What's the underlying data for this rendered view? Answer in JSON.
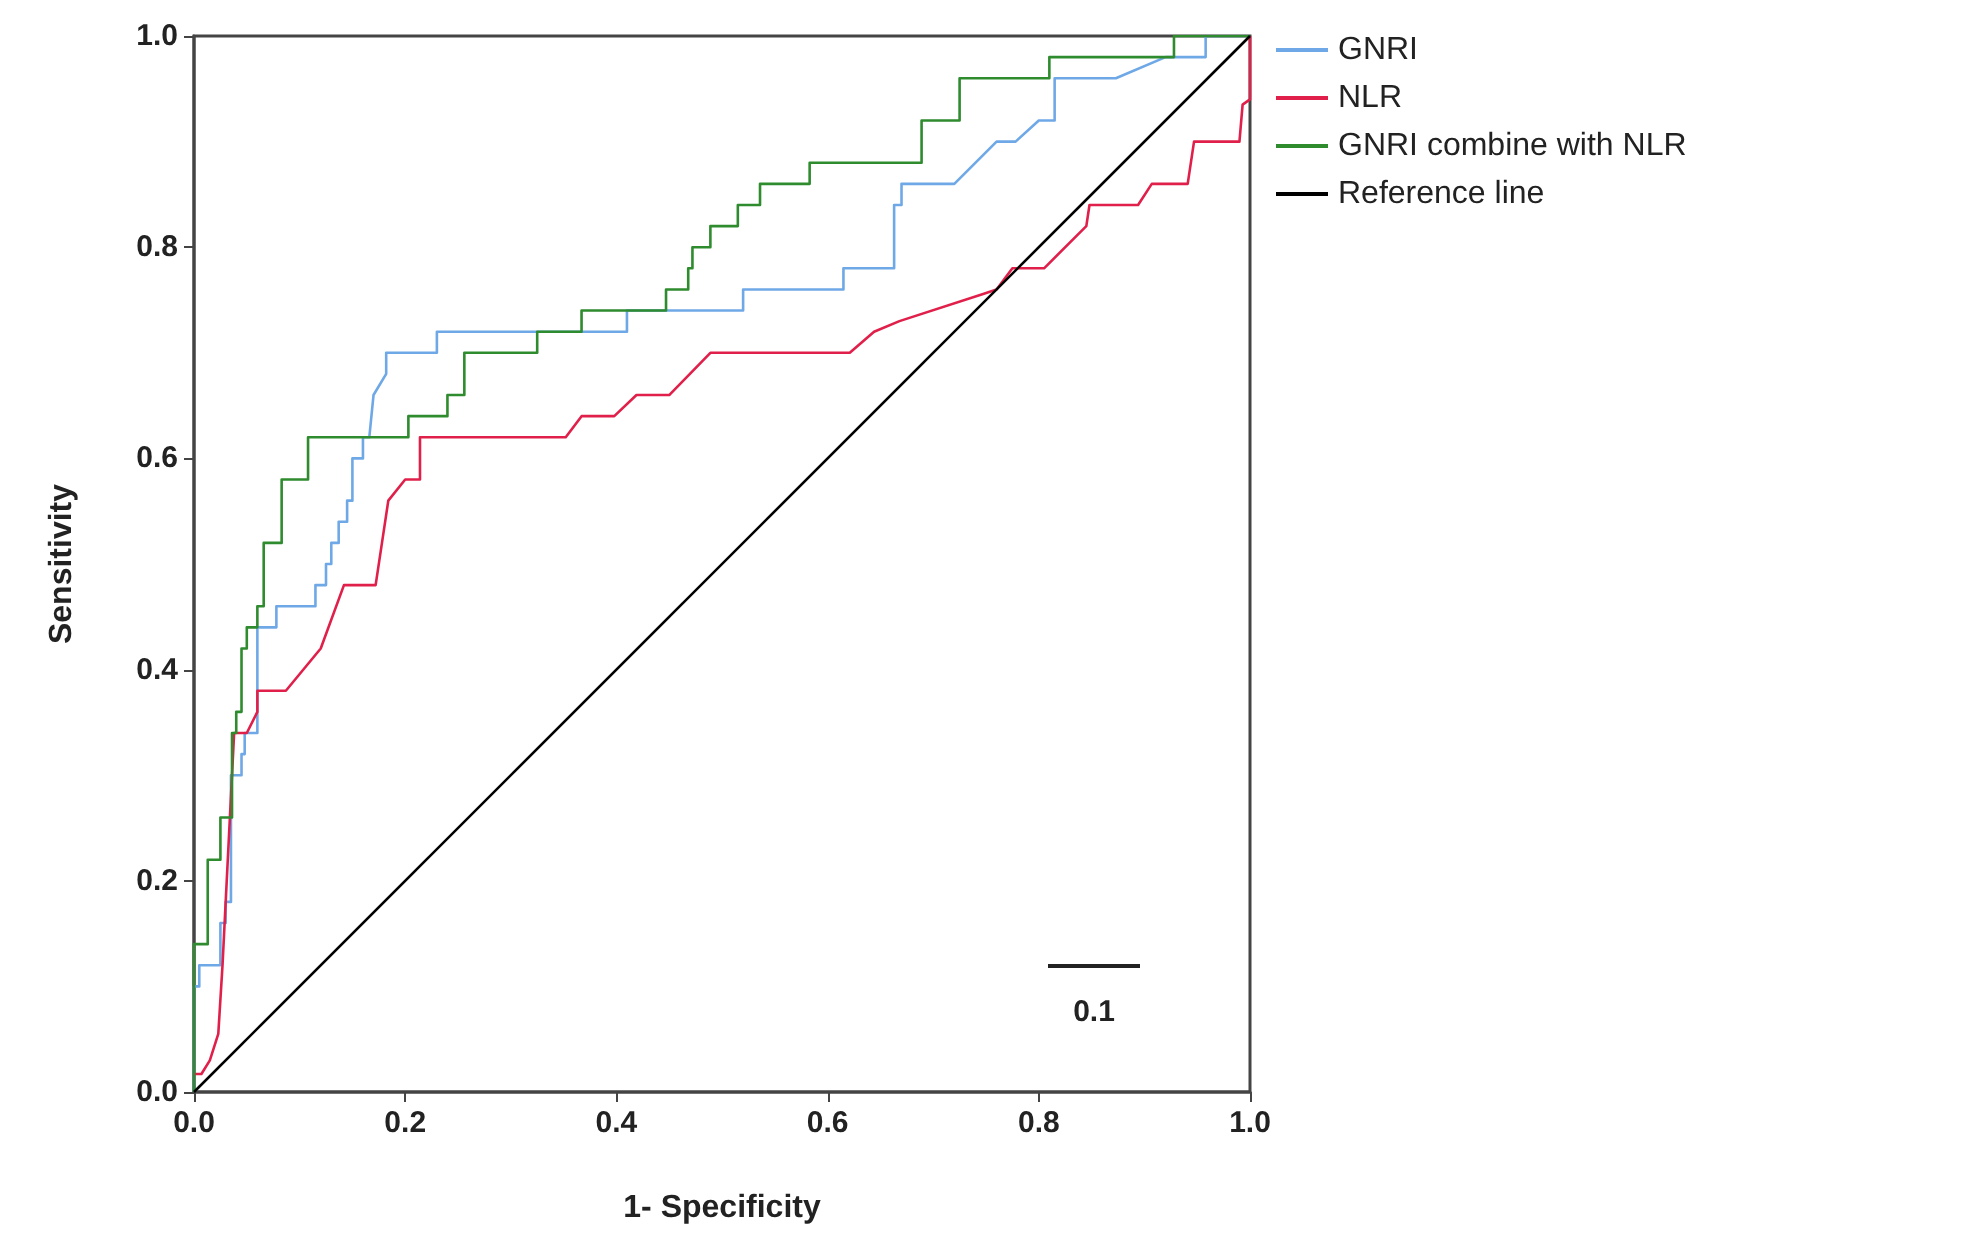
{
  "chart_data": {
    "type": "line",
    "xlabel": "1- Specificity",
    "ylabel": "Sensitivity",
    "xlim": [
      0,
      1
    ],
    "ylim": [
      0,
      1
    ],
    "xticks": [
      {
        "value": 0,
        "label": "0.0"
      },
      0.2,
      0.4,
      0.6,
      0.8,
      {
        "value": 1,
        "label": "1.0"
      }
    ],
    "yticks": [
      {
        "value": 0,
        "label": "0.0"
      },
      0.2,
      0.4,
      0.6,
      0.8,
      {
        "value": 1,
        "label": "1.0"
      }
    ],
    "grid": false,
    "legend": "top right",
    "marker": "none",
    "line_style": "solid",
    "annotations": [
      "0.1"
    ],
    "series": [
      {
        "name": "GNRI",
        "color": "#6fa8e6",
        "x": [
          0,
          0,
          0.005,
          0.005,
          0.025,
          0.025,
          0.03,
          0.03,
          0.035,
          0.035,
          0.045,
          0.045,
          0.048,
          0.048,
          0.06,
          0.06,
          0.078,
          0.078,
          0.115,
          0.115,
          0.125,
          0.125,
          0.13,
          0.13,
          0.137,
          0.137,
          0.145,
          0.145,
          0.15,
          0.15,
          0.16,
          0.16,
          0.166,
          0.17,
          0.182,
          0.182,
          0.23,
          0.23,
          0.41,
          0.41,
          0.52,
          0.52,
          0.615,
          0.615,
          0.663,
          0.663,
          0.67,
          0.67,
          0.72,
          0.76,
          0.778,
          0.8,
          0.815,
          0.815,
          0.873,
          0.92,
          0.958,
          0.958,
          1
        ],
        "values": [
          0,
          0.1,
          0.1,
          0.12,
          0.12,
          0.16,
          0.16,
          0.18,
          0.18,
          0.3,
          0.3,
          0.32,
          0.32,
          0.34,
          0.34,
          0.44,
          0.44,
          0.46,
          0.46,
          0.48,
          0.48,
          0.5,
          0.5,
          0.52,
          0.52,
          0.54,
          0.54,
          0.56,
          0.56,
          0.6,
          0.6,
          0.62,
          0.62,
          0.66,
          0.68,
          0.7,
          0.7,
          0.72,
          0.72,
          0.74,
          0.74,
          0.76,
          0.76,
          0.78,
          0.78,
          0.84,
          0.84,
          0.86,
          0.86,
          0.9,
          0.9,
          0.92,
          0.92,
          0.96,
          0.96,
          0.98,
          0.98,
          1,
          1
        ]
      },
      {
        "name": "NLR",
        "color": "#e0204a",
        "x": [
          0,
          0.007,
          0.015,
          0.023,
          0.027,
          0.038,
          0.05,
          0.06,
          0.06,
          0.087,
          0.12,
          0.142,
          0.172,
          0.178,
          0.184,
          0.2,
          0.214,
          0.214,
          0.352,
          0.367,
          0.398,
          0.419,
          0.45,
          0.489,
          0.621,
          0.644,
          0.668,
          0.748,
          0.76,
          0.775,
          0.805,
          0.845,
          0.848,
          0.894,
          0.907,
          0.941,
          0.947,
          0.99,
          0.993,
          1,
          1
        ],
        "values": [
          0.017,
          0.017,
          0.03,
          0.055,
          0.12,
          0.34,
          0.34,
          0.36,
          0.38,
          0.38,
          0.42,
          0.48,
          0.48,
          0.52,
          0.56,
          0.58,
          0.58,
          0.62,
          0.62,
          0.64,
          0.64,
          0.66,
          0.66,
          0.7,
          0.7,
          0.72,
          0.73,
          0.756,
          0.76,
          0.78,
          0.78,
          0.82,
          0.84,
          0.84,
          0.86,
          0.86,
          0.9,
          0.9,
          0.935,
          0.94,
          1
        ]
      },
      {
        "name": "GNRI combine with NLR",
        "color": "#2e8b2e",
        "x": [
          0,
          0,
          0.013,
          0.013,
          0.025,
          0.025,
          0.036,
          0.036,
          0.04,
          0.04,
          0.045,
          0.045,
          0.05,
          0.05,
          0.06,
          0.06,
          0.066,
          0.066,
          0.083,
          0.083,
          0.108,
          0.108,
          0.203,
          0.203,
          0.24,
          0.24,
          0.256,
          0.256,
          0.325,
          0.325,
          0.367,
          0.367,
          0.447,
          0.447,
          0.468,
          0.468,
          0.472,
          0.472,
          0.489,
          0.489,
          0.515,
          0.515,
          0.536,
          0.536,
          0.583,
          0.583,
          0.689,
          0.689,
          0.725,
          0.725,
          0.81,
          0.81,
          0.928,
          0.928,
          1
        ],
        "values": [
          0,
          0.14,
          0.14,
          0.22,
          0.22,
          0.26,
          0.26,
          0.34,
          0.34,
          0.36,
          0.36,
          0.42,
          0.42,
          0.44,
          0.44,
          0.46,
          0.46,
          0.52,
          0.52,
          0.58,
          0.58,
          0.62,
          0.62,
          0.64,
          0.64,
          0.66,
          0.66,
          0.7,
          0.7,
          0.72,
          0.72,
          0.74,
          0.74,
          0.76,
          0.76,
          0.78,
          0.78,
          0.8,
          0.8,
          0.82,
          0.82,
          0.84,
          0.84,
          0.86,
          0.86,
          0.88,
          0.88,
          0.92,
          0.92,
          0.96,
          0.96,
          0.98,
          0.98,
          1,
          1
        ]
      },
      {
        "name": "Reference line",
        "color": "#000000",
        "x": [
          0,
          1
        ],
        "values": [
          0,
          1
        ]
      }
    ]
  }
}
